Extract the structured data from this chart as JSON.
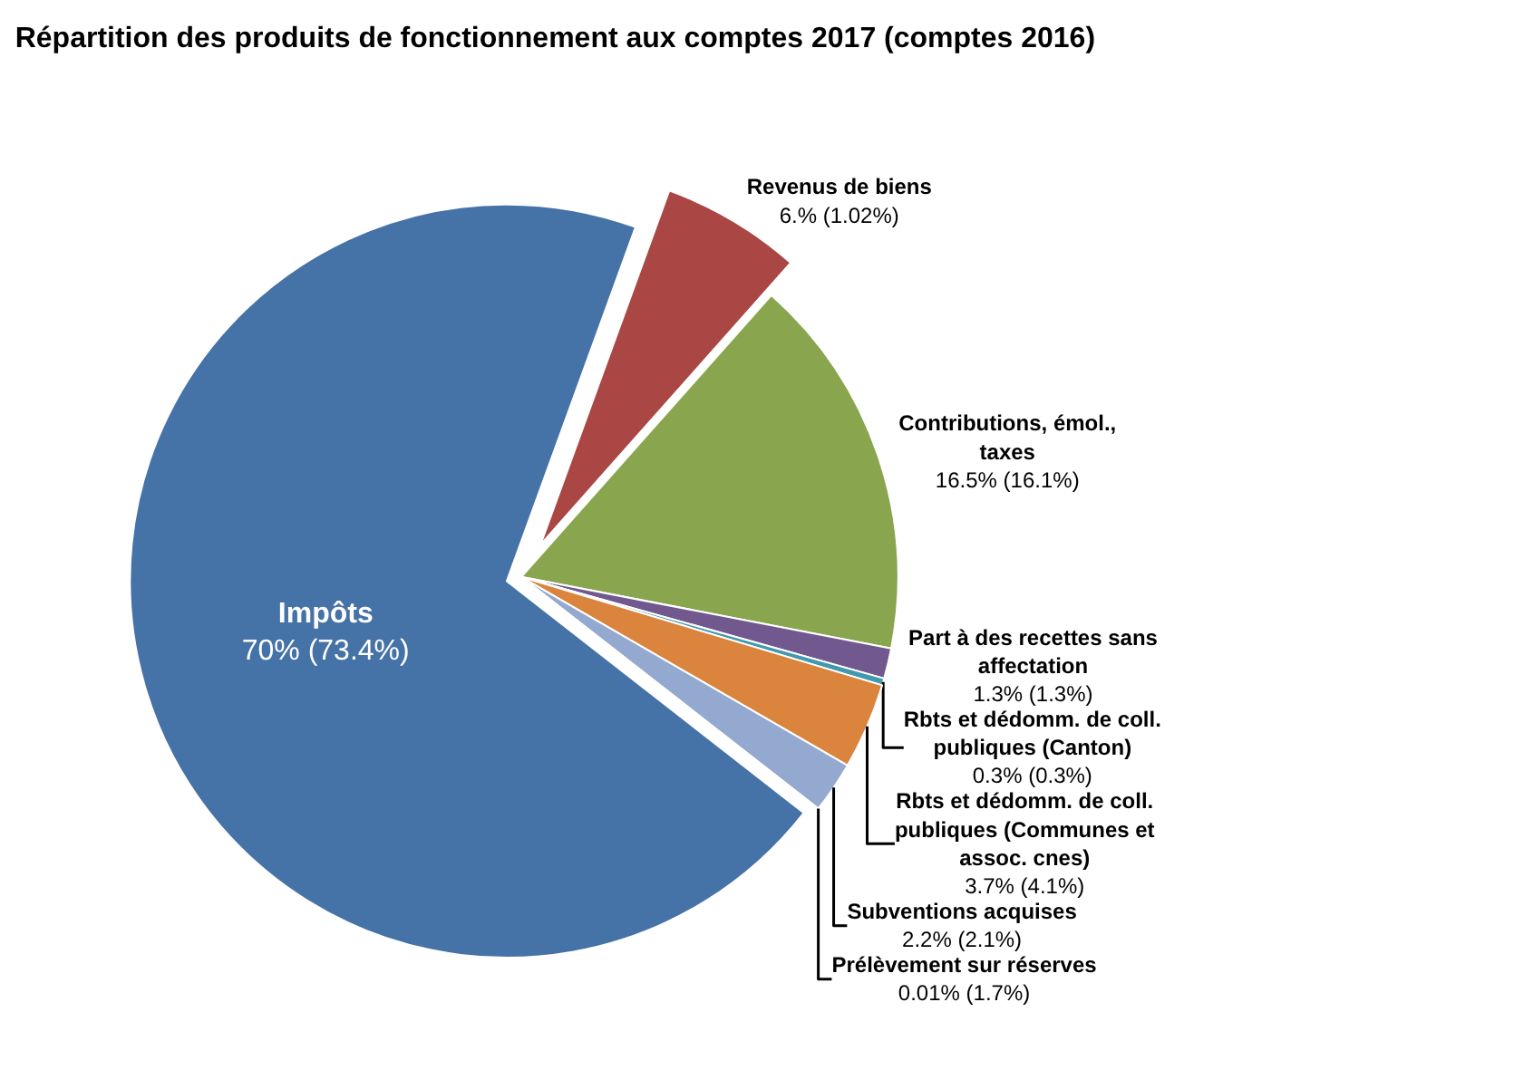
{
  "chart_data": {
    "type": "pie",
    "title": "Répartition des produits de fonctionnement aux comptes 2017 (comptes 2016)",
    "categories": [
      "Impôts",
      "Revenus de biens",
      "Contributions, émol., taxes",
      "Part à des recettes sans affectation",
      "Rbts et dédomm. de coll. publiques (Canton)",
      "Rbts et dédomm. de coll. publiques (Communes et assoc. cnes)",
      "Subventions acquises",
      "Prélèvement sur réserves"
    ],
    "values": [
      70,
      6,
      16.5,
      1.3,
      0.3,
      3.7,
      2.2,
      0.01
    ],
    "value_labels": [
      "70% (73.4%)",
      "6.% (1.02%)",
      "16.5% (16.1%)",
      "1.3% (1.3%)",
      "0.3% (0.3%)",
      "3.7% (4.1%)",
      "2.2% (2.1%)",
      "0.01% (1.7%)"
    ],
    "colors": [
      "#4572a7",
      "#aa4643",
      "#89a54e",
      "#71588f",
      "#4198af",
      "#db843d",
      "#93a9cf",
      "#b9cde5"
    ],
    "legend": false
  }
}
